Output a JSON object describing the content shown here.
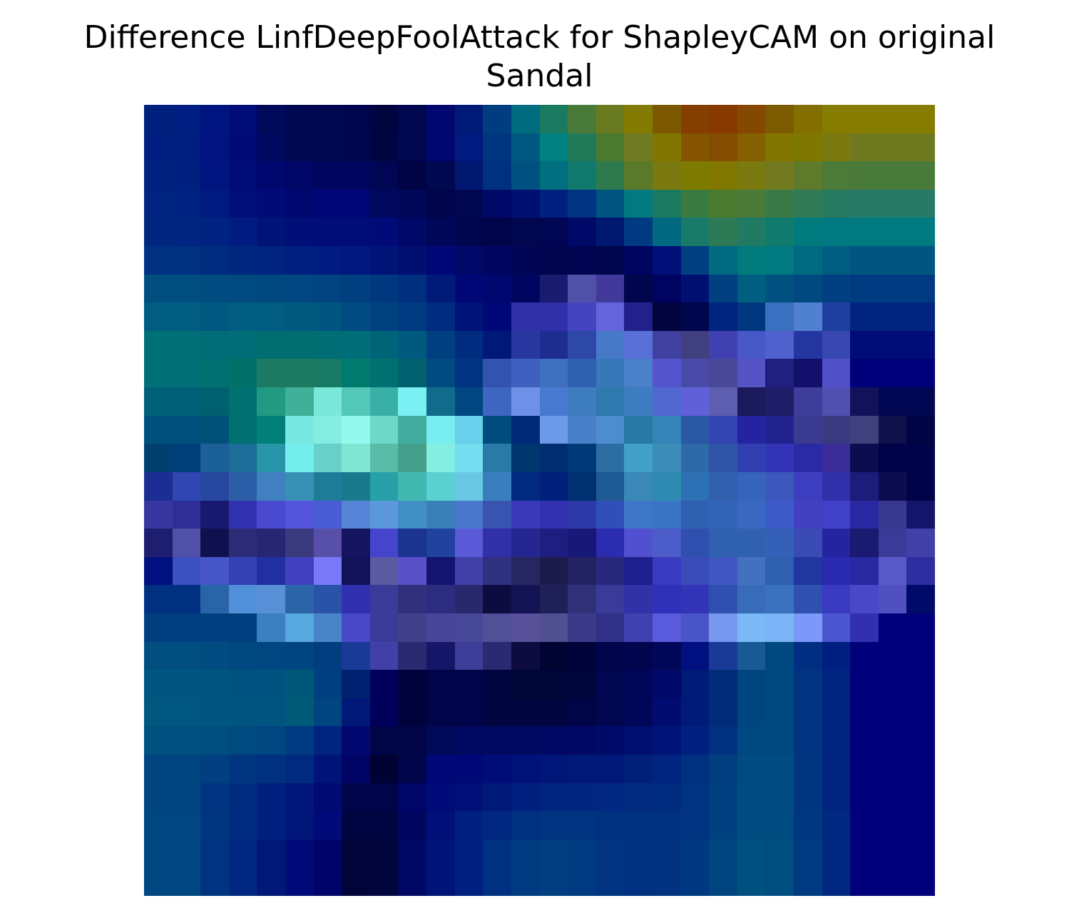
{
  "title": {
    "line1": "Difference LinfDeepFoolAttack for ShapleyCAM on original",
    "line2": "Sandal"
  },
  "chart_data": {
    "type": "heatmap",
    "title": "Difference LinfDeepFoolAttack for ShapleyCAM on original Sandal",
    "rows": 28,
    "cols": 28,
    "axes_visible": false,
    "grid": false,
    "legend": "none",
    "colormap": "jet-overlay",
    "cells": [
      [
        "#00207d",
        "#001e82",
        "#001480",
        "#000c78",
        "#000a5a",
        "#000852",
        "#00074f",
        "#00064d",
        "#000540",
        "#00074f",
        "#000870",
        "#001a78",
        "#003d80",
        "#006c80",
        "#1a7a60",
        "#4a7a3a",
        "#6a7a20",
        "#837c00",
        "#7c5800",
        "#843e00",
        "#873a00",
        "#844800",
        "#7c5a00",
        "#826f00",
        "#857c00",
        "#857c00",
        "#857c00",
        "#857c00"
      ],
      [
        "#001f80",
        "#001d80",
        "#001380",
        "#000b78",
        "#000960",
        "#000852",
        "#00074f",
        "#00064d",
        "#000542",
        "#000650",
        "#000870",
        "#001a80",
        "#003580",
        "#005880",
        "#008080",
        "#207a5a",
        "#4a7a30",
        "#707a20",
        "#837600",
        "#845400",
        "#844c00",
        "#846000",
        "#827600",
        "#7e7800",
        "#7a7a10",
        "#6f7a20",
        "#6f7a20",
        "#6f7a20"
      ],
      [
        "#00227f",
        "#002080",
        "#001480",
        "#000c78",
        "#000870",
        "#000668",
        "#000660",
        "#000660",
        "#000654",
        "#000444",
        "#00084f",
        "#001870",
        "#003080",
        "#005080",
        "#007080",
        "#107a6c",
        "#2e7a4c",
        "#5a7a2a",
        "#7a7a10",
        "#7e7c00",
        "#807800",
        "#7a7a10",
        "#727a20",
        "#5e7a2a",
        "#4c7a38",
        "#4a7a3a",
        "#4a7a3a",
        "#4a7a3a"
      ],
      [
        "#002480",
        "#002280",
        "#001a80",
        "#001078",
        "#000a78",
        "#000870",
        "#000678",
        "#000678",
        "#00075e",
        "#000658",
        "#00044a",
        "#000650",
        "#000868",
        "#001070",
        "#002080",
        "#003480",
        "#005580",
        "#007a80",
        "#1a7a60",
        "#3a7a40",
        "#4a7a30",
        "#4a7a38",
        "#3a7a48",
        "#307a55",
        "#277a60",
        "#277a66",
        "#277a66",
        "#277a66"
      ],
      [
        "#002780",
        "#002580",
        "#002280",
        "#001c80",
        "#001478",
        "#000f78",
        "#000c78",
        "#000c78",
        "#000a78",
        "#000868",
        "#000658",
        "#000550",
        "#00054a",
        "#00074e",
        "#000654",
        "#000868",
        "#001870",
        "#003a80",
        "#006880",
        "#1a7a6a",
        "#2e7a56",
        "#207a64",
        "#107a6c",
        "#007a7c",
        "#007a80",
        "#007a80",
        "#007a80",
        "#007a80"
      ],
      [
        "#003080",
        "#003080",
        "#002c80",
        "#002780",
        "#002480",
        "#002080",
        "#001c80",
        "#001880",
        "#001478",
        "#000f70",
        "#000878",
        "#000868",
        "#000660",
        "#000454",
        "#00044e",
        "#000450",
        "#00064e",
        "#000560",
        "#001078",
        "#004080",
        "#006a80",
        "#007a7c",
        "#007a80",
        "#006a80",
        "#005c80",
        "#005680",
        "#005680",
        "#005680"
      ],
      [
        "#004e80",
        "#004e80",
        "#004c80",
        "#004a80",
        "#004880",
        "#004680",
        "#004380",
        "#003f80",
        "#003880",
        "#002f80",
        "#001a78",
        "#000878",
        "#000870",
        "#000660",
        "#1a1a6e",
        "#5050a8",
        "#40399a",
        "#00064d",
        "#000460",
        "#001070",
        "#004080",
        "#005e80",
        "#005080",
        "#004880",
        "#004080",
        "#003a80",
        "#003a80",
        "#003a80"
      ],
      [
        "#005c80",
        "#005c80",
        "#005880",
        "#005c80",
        "#005c80",
        "#005a80",
        "#005680",
        "#004c80",
        "#004280",
        "#003a80",
        "#002c80",
        "#001478",
        "#000878",
        "#3030a8",
        "#3030a8",
        "#4444c0",
        "#6464dc",
        "#22208a",
        "#00033e",
        "#00064d",
        "#002480",
        "#003880",
        "#3a70c0",
        "#5080d0",
        "#2040a0",
        "#002480",
        "#002480",
        "#002480"
      ],
      [
        "#007078",
        "#007076",
        "#006c78",
        "#006e76",
        "#006e70",
        "#006e70",
        "#006e74",
        "#006e78",
        "#006478",
        "#005a80",
        "#004080",
        "#002c80",
        "#001878",
        "#2838a0",
        "#1e2e90",
        "#2e48a8",
        "#4878c8",
        "#5870d8",
        "#4040a0",
        "#404080",
        "#4040b0",
        "#4858c8",
        "#5060cc",
        "#2436a0",
        "#3848b0",
        "#000c78",
        "#000c78",
        "#000c78"
      ],
      [
        "#007078",
        "#007076",
        "#007070",
        "#007068",
        "#1c7a62",
        "#1c7a62",
        "#187a64",
        "#007a6c",
        "#007070",
        "#006070",
        "#004c80",
        "#003480",
        "#3452b0",
        "#4060c0",
        "#4070c0",
        "#3060b0",
        "#3878b8",
        "#4a80c8",
        "#5454cc",
        "#4a4aa8",
        "#4a4898",
        "#5454c4",
        "#202080",
        "#12106a",
        "#5050c8",
        "#00007a",
        "#00007a",
        "#00007a"
      ],
      [
        "#006078",
        "#006078",
        "#006070",
        "#007070",
        "#209a80",
        "#40b098",
        "#7ae8d8",
        "#54c8b8",
        "#38b0a8",
        "#7af0f4",
        "#106c8a",
        "#004680",
        "#3c66c0",
        "#7090e8",
        "#4878d0",
        "#3e7cc0",
        "#2e7aae",
        "#3c7cc0",
        "#5068d0",
        "#6060d8",
        "#5e5eb0",
        "#1a1a5c",
        "#1e1e68",
        "#3e3e9a",
        "#5050b0",
        "#12125a",
        "#000652",
        "#000652"
      ],
      [
        "#00507e",
        "#00507e",
        "#005078",
        "#007070",
        "#008078",
        "#78e8e0",
        "#84ece0",
        "#94f8ec",
        "#6cd8c8",
        "#42aca0",
        "#78eef0",
        "#68d0ea",
        "#004c7e",
        "#002a78",
        "#6c9ae8",
        "#4880c8",
        "#4e8cd0",
        "#287aa4",
        "#3484b8",
        "#2a58a4",
        "#3444b0",
        "#2424a0",
        "#22228e",
        "#3a3a90",
        "#3a3a80",
        "#40407e",
        "#10104a",
        "#000444"
      ],
      [
        "#004070",
        "#00407a",
        "#1c609a",
        "#1c6e98",
        "#2894a8",
        "#74eeec",
        "#68d0c8",
        "#80e6d4",
        "#58bca8",
        "#44a08a",
        "#84eee0",
        "#74def0",
        "#2a7aa8",
        "#00366e",
        "#002c70",
        "#003a78",
        "#2c6ea4",
        "#40a0c8",
        "#3c8cb8",
        "#2e6aa8",
        "#3054a8",
        "#3040b0",
        "#3434b8",
        "#2a2aa4",
        "#3c2c98",
        "#0c0c50",
        "#00034a",
        "#00034a"
      ],
      [
        "#1c2e94",
        "#3046b0",
        "#2848a0",
        "#2c5ea8",
        "#4080c0",
        "#3890b4",
        "#1e7c98",
        "#187a8c",
        "#28a0a8",
        "#40b8b0",
        "#5ad0d0",
        "#68c8e4",
        "#3a7ec0",
        "#002a80",
        "#00207c",
        "#003070",
        "#1e5a94",
        "#3a88b8",
        "#2e8ab0",
        "#2e70b4",
        "#3060ae",
        "#3664bc",
        "#3c58bc",
        "#3e3ec0",
        "#3030aa",
        "#1c1c7a",
        "#0c0c50",
        "#00034a"
      ],
      [
        "#3636a0",
        "#2e2e96",
        "#181870",
        "#3232b0",
        "#4a4ad0",
        "#5454dc",
        "#4a5cd4",
        "#5884d8",
        "#5c98dc",
        "#4090c4",
        "#3a80b8",
        "#4a76cc",
        "#3854b0",
        "#3a3ab8",
        "#3232b0",
        "#2e3aa8",
        "#3050b8",
        "#3e76c8",
        "#3a74c4",
        "#3060b0",
        "#3464b8",
        "#3a68c0",
        "#3c5ac8",
        "#4040c0",
        "#4242c8",
        "#2828a0",
        "#383890",
        "#14146a"
      ],
      [
        "#1e1e70",
        "#5050a8",
        "#10104e",
        "#2c2c78",
        "#262672",
        "#3a3a7e",
        "#5850a8",
        "#141460",
        "#4444cc",
        "#1a3490",
        "#2242a0",
        "#5a5ad8",
        "#3030a8",
        "#262690",
        "#1e1e80",
        "#181878",
        "#2c2cb0",
        "#5050d0",
        "#4c5cc8",
        "#3050b0",
        "#3060b0",
        "#3060b0",
        "#3460b8",
        "#3a4cb4",
        "#2424a0",
        "#1a1a70",
        "#3a3a98",
        "#4040a8"
      ],
      [
        "#00107e",
        "#3a50c0",
        "#4656c8",
        "#3440b4",
        "#2030a0",
        "#4040c0",
        "#7878f8",
        "#12125a",
        "#5a5aa0",
        "#5a50c8",
        "#141470",
        "#4040a8",
        "#303080",
        "#262660",
        "#1c1c4c",
        "#222262",
        "#28287c",
        "#1e1e8e",
        "#3a3ac0",
        "#3a4cb8",
        "#4056c0",
        "#4470c0",
        "#3060b0",
        "#2236a0",
        "#2a2ab0",
        "#2828a0",
        "#5858c8",
        "#2e2ea0"
      ],
      [
        "#003080",
        "#003080",
        "#2a64a8",
        "#5090d8",
        "#5890d8",
        "#2c64a8",
        "#2a52a8",
        "#3030b0",
        "#3a3a98",
        "#32307c",
        "#2c2c80",
        "#2a286c",
        "#0c0c40",
        "#141454",
        "#202058",
        "#303078",
        "#3a3a98",
        "#3232a8",
        "#3030b8",
        "#3434b8",
        "#3050b0",
        "#386cb8",
        "#3a72c0",
        "#3050b0",
        "#3a3ac0",
        "#4848c8",
        "#5050c0",
        "#000a68"
      ],
      [
        "#004080",
        "#004080",
        "#004080",
        "#004080",
        "#3a80c0",
        "#58a8e0",
        "#4a84c8",
        "#4848c8",
        "#3a3a98",
        "#40408a",
        "#48449a",
        "#484898",
        "#505098",
        "#585098",
        "#505090",
        "#3a3a88",
        "#303088",
        "#4040b0",
        "#5a5adc",
        "#4a56c8",
        "#7898f0",
        "#7ab8f8",
        "#7cb4f8",
        "#7c98f8",
        "#4a56d0",
        "#3030b0",
        "#00007a",
        "#00007a"
      ],
      [
        "#004e80",
        "#004e80",
        "#004c80",
        "#004880",
        "#004680",
        "#004480",
        "#003e80",
        "#1a3a98",
        "#4040a8",
        "#2a2a70",
        "#161668",
        "#3e3e98",
        "#2a2a70",
        "#0c0c40",
        "#000430",
        "#00033a",
        "#00044a",
        "#00054e",
        "#000658",
        "#001080",
        "#1a3a98",
        "#1a5a94",
        "#004880",
        "#002e80",
        "#001f80",
        "#00007a",
        "#00007a",
        "#00007a"
      ],
      [
        "#005680",
        "#005680",
        "#005480",
        "#005280",
        "#005280",
        "#005878",
        "#004080",
        "#002070",
        "#00005c",
        "#00023c",
        "#000448",
        "#000448",
        "#000540",
        "#000538",
        "#000538",
        "#00063c",
        "#000650",
        "#00075a",
        "#000868",
        "#001a78",
        "#002c78",
        "#004480",
        "#004880",
        "#003480",
        "#002480",
        "#00007a",
        "#00007a",
        "#00007a"
      ],
      [
        "#005880",
        "#005880",
        "#005680",
        "#005480",
        "#005480",
        "#005a78",
        "#004480",
        "#001878",
        "#00005c",
        "#00023c",
        "#000448",
        "#000448",
        "#000540",
        "#000540",
        "#000540",
        "#000548",
        "#000650",
        "#00075a",
        "#000c70",
        "#001a78",
        "#002c78",
        "#004480",
        "#004880",
        "#003480",
        "#002480",
        "#00007a",
        "#00007a",
        "#00007a"
      ],
      [
        "#005080",
        "#005080",
        "#004e80",
        "#004a80",
        "#004680",
        "#003a80",
        "#002480",
        "#000870",
        "#000548",
        "#000548",
        "#000858",
        "#000860",
        "#000860",
        "#000860",
        "#000864",
        "#000864",
        "#000a68",
        "#000e70",
        "#001478",
        "#002080",
        "#003080",
        "#004880",
        "#004880",
        "#003480",
        "#002480",
        "#00007a",
        "#00007a",
        "#00007a"
      ],
      [
        "#004480",
        "#004480",
        "#003e80",
        "#003680",
        "#003080",
        "#002a80",
        "#001478",
        "#000464",
        "#000234",
        "#000448",
        "#000878",
        "#000878",
        "#000c78",
        "#001278",
        "#001578",
        "#001878",
        "#001878",
        "#002078",
        "#002480",
        "#003080",
        "#003e80",
        "#004c80",
        "#004c80",
        "#003680",
        "#002480",
        "#00007a",
        "#00007a",
        "#00007a"
      ],
      [
        "#004480",
        "#004480",
        "#003480",
        "#002c80",
        "#002080",
        "#001678",
        "#000a70",
        "#000448",
        "#000448",
        "#000568",
        "#000a78",
        "#001078",
        "#001878",
        "#002080",
        "#002480",
        "#002680",
        "#002880",
        "#002a80",
        "#002c80",
        "#003480",
        "#004080",
        "#004c80",
        "#004c80",
        "#003680",
        "#002480",
        "#00007a",
        "#00007a",
        "#00007a"
      ],
      [
        "#004680",
        "#004680",
        "#003680",
        "#002c80",
        "#002080",
        "#001678",
        "#000a78",
        "#000440",
        "#000440",
        "#000560",
        "#001078",
        "#002080",
        "#002880",
        "#003080",
        "#003480",
        "#003480",
        "#003080",
        "#003080",
        "#003080",
        "#003480",
        "#004080",
        "#004c80",
        "#004c80",
        "#003880",
        "#002880",
        "#00007a",
        "#00007a",
        "#00007a"
      ],
      [
        "#004680",
        "#004680",
        "#003480",
        "#002880",
        "#001878",
        "#000a78",
        "#000468",
        "#000438",
        "#00063c",
        "#000864",
        "#001478",
        "#002080",
        "#003080",
        "#003a80",
        "#003e80",
        "#003a80",
        "#003480",
        "#003080",
        "#003280",
        "#003880",
        "#004480",
        "#005080",
        "#004e80",
        "#003a80",
        "#002880",
        "#00007a",
        "#00007a",
        "#00007a"
      ],
      [
        "#004680",
        "#004680",
        "#003480",
        "#002880",
        "#001878",
        "#000a78",
        "#000468",
        "#000438",
        "#00063c",
        "#000864",
        "#001478",
        "#002080",
        "#003080",
        "#003a80",
        "#003e80",
        "#003a80",
        "#003480",
        "#003080",
        "#003280",
        "#003880",
        "#004480",
        "#005080",
        "#004e80",
        "#003a80",
        "#002880",
        "#00007a",
        "#00007a",
        "#00007a"
      ]
    ]
  }
}
